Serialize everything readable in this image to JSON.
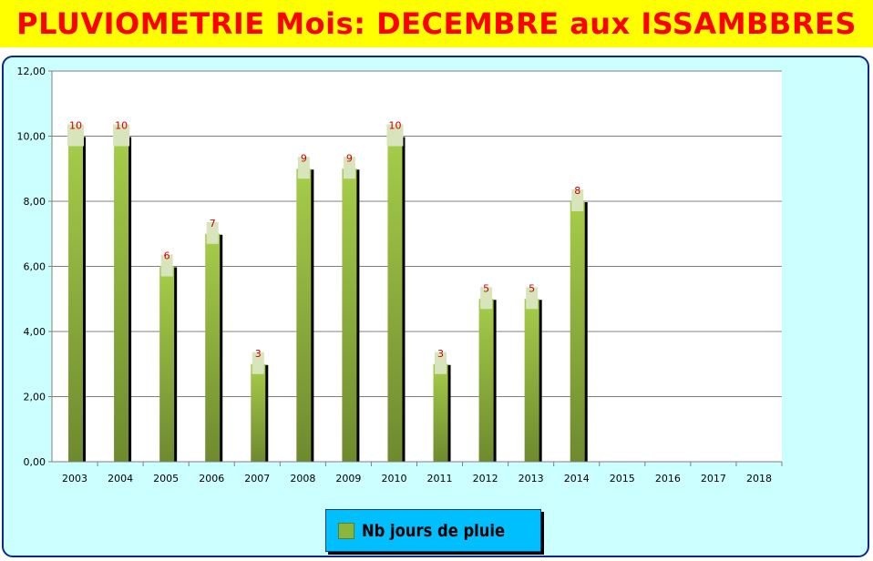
{
  "title": "PLUVIOMETRIE Mois: DECEMBRE aux ISSAMBBRES",
  "colors": {
    "title_background": "#ffff00",
    "title_text": "#ff0000",
    "chart_background": "#ccffff",
    "plot_background": "#ffffff",
    "bar_top": "#a6cd4a",
    "bar_bottom": "#6e8a2e",
    "bar_shadow": "#000000",
    "data_label_text": "#cc0000",
    "data_label_background": "#d8e4bc",
    "legend_background": "#00bfff"
  },
  "chart_data": {
    "type": "bar",
    "title": "PLUVIOMETRIE Mois: DECEMBRE aux ISSAMBBRES",
    "categories": [
      "2003",
      "2004",
      "2005",
      "2006",
      "2007",
      "2008",
      "2009",
      "2010",
      "2011",
      "2012",
      "2013",
      "2014",
      "2015",
      "2016",
      "2017",
      "2018"
    ],
    "series": [
      {
        "name": "Nb jours de pluie",
        "values": [
          10,
          10,
          6,
          7,
          3,
          9,
          9,
          10,
          3,
          5,
          5,
          8,
          null,
          null,
          null,
          null
        ]
      }
    ],
    "data_labels": [
      "10",
      "10",
      "6",
      "7",
      "3",
      "9",
      "9",
      "10",
      "3",
      "5",
      "5",
      "8",
      "",
      "",
      "",
      ""
    ],
    "y_ticks": [
      "0,00",
      "2,00",
      "4,00",
      "6,00",
      "8,00",
      "10,00",
      "12,00"
    ],
    "ylim": [
      0,
      12
    ],
    "grid": true,
    "xlabel": "",
    "ylabel": "",
    "legend_position": "bottom"
  },
  "legend": {
    "label": "Nb jours de pluie"
  }
}
